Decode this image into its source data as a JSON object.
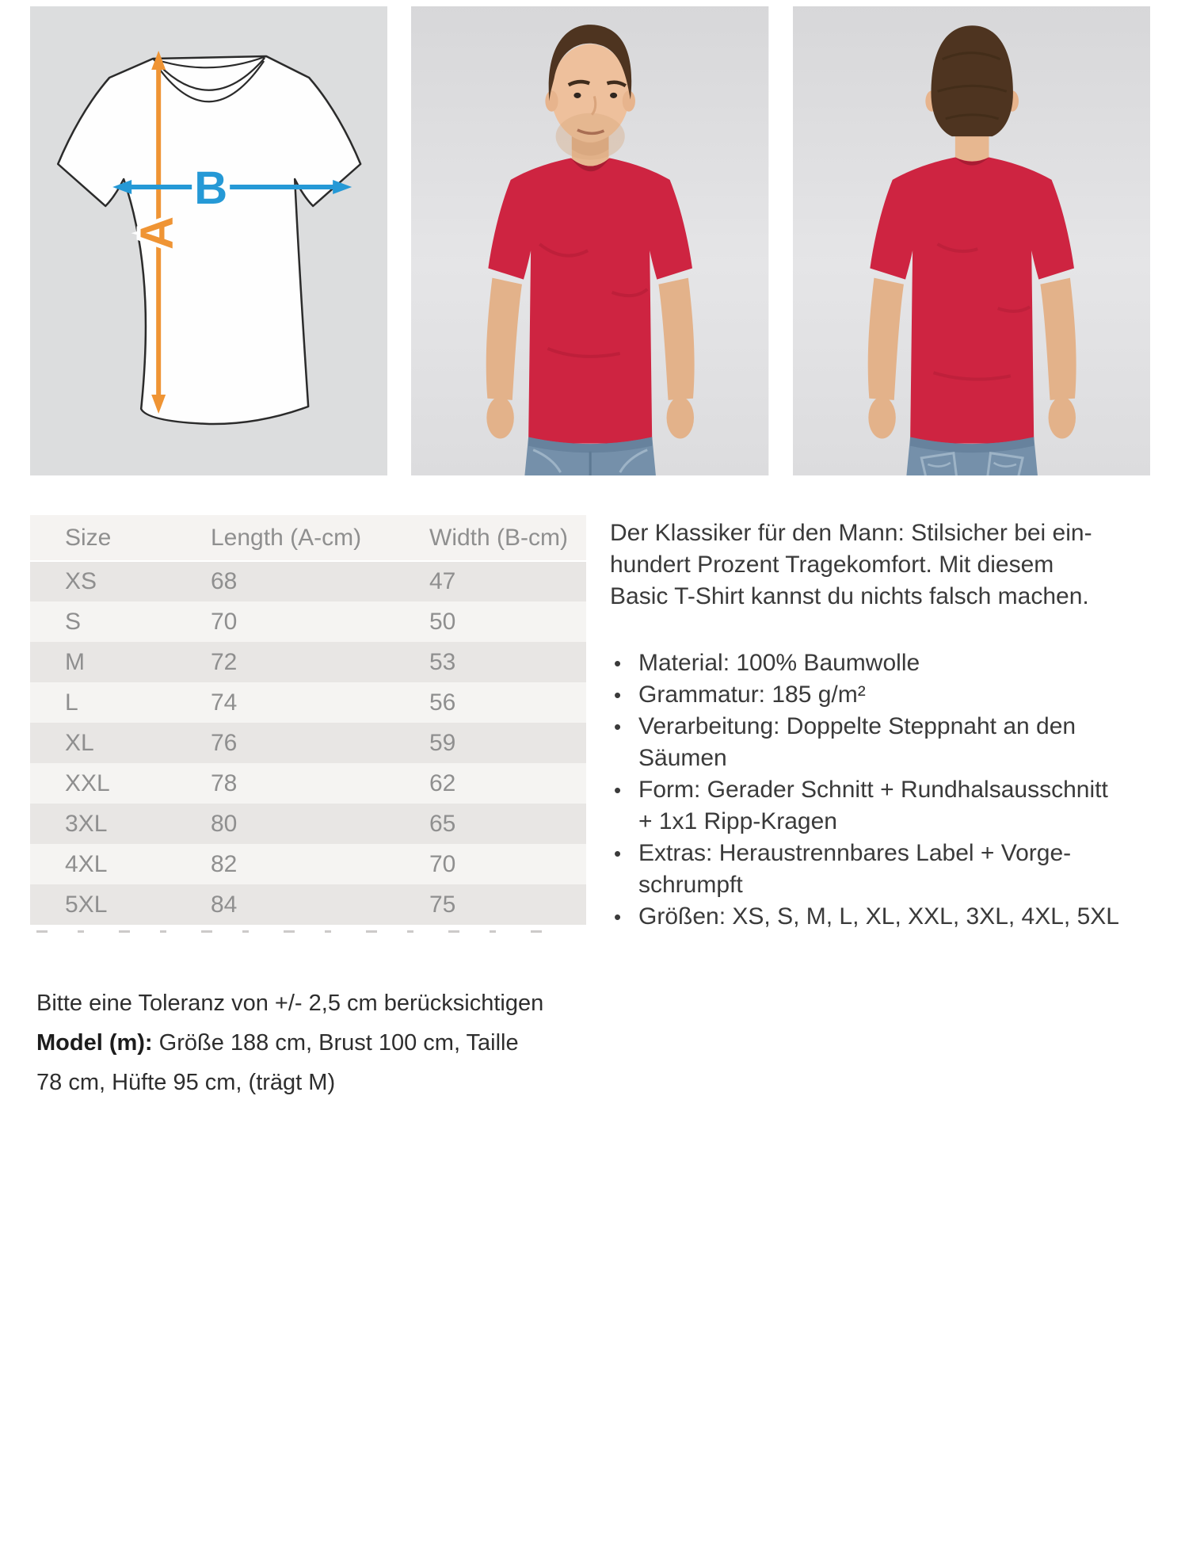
{
  "colors": {
    "accent_orange": "#ef9434",
    "accent_blue": "#2599d6",
    "shirt_red": "#ce2441",
    "panel_gray": "#dcddde"
  },
  "size_guide": {
    "diagram": {
      "label_a": "A",
      "label_b": "B"
    },
    "table": {
      "columns": [
        "Size",
        "Length (A-cm)",
        "Width (B-cm)"
      ],
      "rows": [
        [
          "XS",
          "68",
          "47"
        ],
        [
          "S",
          "70",
          "50"
        ],
        [
          "M",
          "72",
          "53"
        ],
        [
          "L",
          "74",
          "56"
        ],
        [
          "XL",
          "76",
          "59"
        ],
        [
          "XXL",
          "78",
          "62"
        ],
        [
          "3XL",
          "80",
          "65"
        ],
        [
          "4XL",
          "82",
          "70"
        ],
        [
          "5XL",
          "84",
          "75"
        ]
      ]
    },
    "tolerance_note": "Bitte eine Toleranz von +/- 2,5 cm berücksichtigen",
    "model_label": "Model (m):",
    "model_line1": " Größe 188 cm, Brust 100 cm, Taille",
    "model_line2": "78 cm, Hüfte 95 cm, (trägt M)"
  },
  "description": {
    "intro_lines": [
      "Der Klassiker für den Mann: Stilsicher bei ein-",
      "hundert Prozent Tragekomfort. Mit diesem",
      "Basic T-Shirt kannst du nichts falsch machen."
    ],
    "bullet_char": "•",
    "bullets": [
      {
        "lines": [
          "Material: 100% Baumwolle"
        ]
      },
      {
        "lines": [
          "Grammatur: 185 g/m²"
        ]
      },
      {
        "lines": [
          "Verarbeitung: Doppelte Steppnaht an den",
          "Säumen"
        ]
      },
      {
        "lines": [
          "Form: Gerader Schnitt + Rundhalsausschnitt",
          "+ 1x1 Ripp-Kragen"
        ]
      },
      {
        "lines": [
          "Extras: Heraustrennbares Label + Vorge-",
          "schrumpft"
        ]
      },
      {
        "lines": [
          "Größen: XS, S, M, L, XL, XXL, 3XL, 4XL, 5XL"
        ]
      }
    ]
  }
}
